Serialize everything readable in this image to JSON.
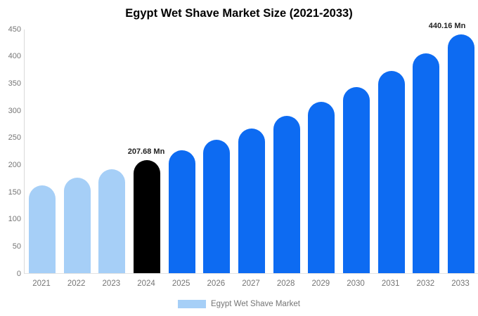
{
  "title": "Egypt Wet Shave Market Size (2021-2033)",
  "legend": {
    "label": "Egypt Wet Shave Market",
    "swatch_color": "#A6CFF7"
  },
  "colors": {
    "past": "#A6CFF7",
    "highlight": "#000000",
    "forecast": "#0D6BF2",
    "axis_text": "#757575",
    "annotation_text": "#222222"
  },
  "chart_data": {
    "type": "bar",
    "title": "Egypt Wet Shave Market Size (2021-2033)",
    "xlabel": "",
    "ylabel": "",
    "unit": "Mn",
    "categories": [
      "2021",
      "2022",
      "2023",
      "2024",
      "2025",
      "2026",
      "2027",
      "2028",
      "2029",
      "2030",
      "2031",
      "2032",
      "2033"
    ],
    "values": [
      161.6,
      175.7,
      191.0,
      207.68,
      225.8,
      245.4,
      266.8,
      290.0,
      315.3,
      342.7,
      372.6,
      405.0,
      440.16
    ],
    "bar_color_keys": [
      "past",
      "past",
      "past",
      "highlight",
      "forecast",
      "forecast",
      "forecast",
      "forecast",
      "forecast",
      "forecast",
      "forecast",
      "forecast",
      "forecast"
    ],
    "ylim": [
      0,
      450
    ],
    "yticks": [
      0,
      50,
      100,
      150,
      200,
      250,
      300,
      350,
      400,
      450
    ],
    "grid": false,
    "legend_position": "bottom",
    "annotations": [
      {
        "category": "2024",
        "text": "207.68 Mn"
      },
      {
        "category": "2033",
        "text": "440.16 Mn"
      }
    ]
  }
}
